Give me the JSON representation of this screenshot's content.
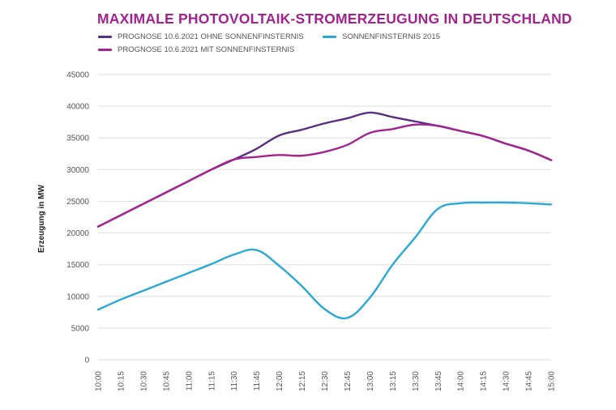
{
  "chart_data": {
    "type": "line",
    "title": "MAXIMALE PHOTOVOLTAIK-STROMERZEUGUNG IN DEUTSCHLAND",
    "xlabel": "",
    "ylabel": "Erzeugung in MW",
    "ylim": [
      0,
      45000
    ],
    "yticks": [
      "0",
      "5000",
      "10000",
      "15000",
      "20000",
      "25000",
      "30000",
      "35000",
      "40000",
      "45000"
    ],
    "ytick_values": [
      0,
      5000,
      10000,
      15000,
      20000,
      25000,
      30000,
      35000,
      40000,
      45000
    ],
    "grid": true,
    "legend_position": "top-left",
    "categories": [
      "10:00",
      "10:15",
      "10:30",
      "10:45",
      "11:00",
      "11:15",
      "11:30",
      "11:45",
      "12:00",
      "12:15",
      "12:30",
      "12:45",
      "13:00",
      "13:15",
      "13:30",
      "13:45",
      "14:00",
      "14:15",
      "14:30",
      "14:45",
      "15:00"
    ],
    "series": [
      {
        "name": "PROGNOSE 10.6.2021 OHNE SONNENFINSTERNIS",
        "color": "#5b2d82",
        "values": [
          21000,
          22800,
          24600,
          26400,
          28200,
          30000,
          31600,
          33300,
          35400,
          36300,
          37300,
          38100,
          39000,
          38300,
          37600,
          36900,
          36100,
          35300,
          34100,
          33000,
          31500
        ]
      },
      {
        "name": "PROGNOSE 10.6.2021 MIT SONNENFINSTERNIS",
        "color": "#a3238e",
        "values": [
          21000,
          22800,
          24600,
          26400,
          28200,
          30000,
          31600,
          32000,
          32300,
          32200,
          32800,
          33900,
          35800,
          36400,
          37100,
          36900,
          36100,
          35300,
          34100,
          33000,
          31500
        ]
      },
      {
        "name": "SONNENFINSTERNIS 2015",
        "color": "#29a8d8",
        "values": [
          7900,
          9500,
          10900,
          12300,
          13700,
          15100,
          16600,
          17300,
          14800,
          11600,
          8000,
          6600,
          9800,
          15000,
          19300,
          23800,
          24700,
          24800,
          24800,
          24700,
          24500
        ]
      }
    ]
  }
}
